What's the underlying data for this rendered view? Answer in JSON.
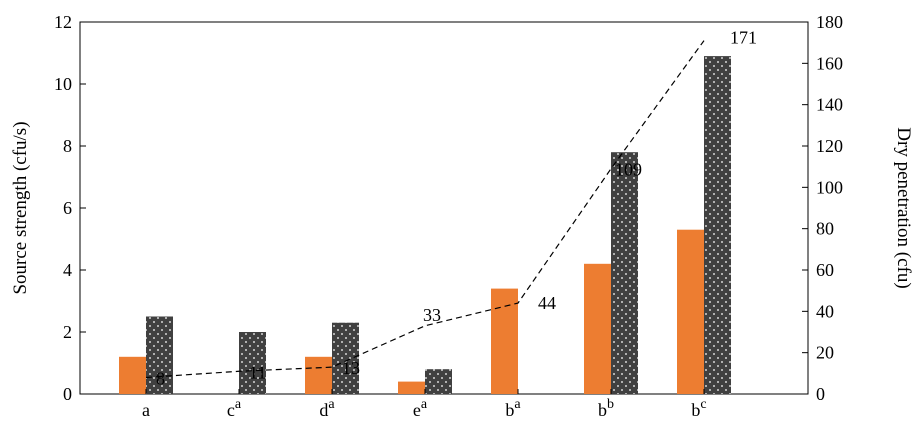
{
  "chart_data": {
    "type": "bar",
    "categories": [
      {
        "base": "a",
        "sup": ""
      },
      {
        "base": "c",
        "sup": "a"
      },
      {
        "base": "d",
        "sup": "a"
      },
      {
        "base": "e",
        "sup": "a"
      },
      {
        "base": "b",
        "sup": "a"
      },
      {
        "base": "b",
        "sup": "b"
      },
      {
        "base": "b",
        "sup": "c"
      }
    ],
    "series": [
      {
        "values": [
          1.2,
          0,
          1.2,
          0.4,
          3.4,
          4.2,
          5.3
        ],
        "color": "#ed7d31",
        "axis": "left",
        "kind": "bar"
      },
      {
        "values": [
          2.5,
          2.0,
          2.3,
          0.8,
          0,
          7.8,
          10.9
        ],
        "color": "#404040",
        "pattern": "white-dots",
        "axis": "left",
        "kind": "bar"
      },
      {
        "values": [
          8,
          11,
          13,
          33,
          44,
          109,
          171
        ],
        "color": "#000000",
        "style": "dashed",
        "axis": "right",
        "kind": "line"
      }
    ],
    "ylabel": "Source strength (cfu/s)",
    "y2label": "Dry penetration (cfu)",
    "ylim": [
      0,
      12
    ],
    "yticks": [
      "0",
      "2",
      "4",
      "6",
      "8",
      "10",
      "12"
    ],
    "y2lim": [
      0,
      180
    ],
    "y2ticks": [
      "0",
      "20",
      "40",
      "60",
      "80",
      "100",
      "120",
      "140",
      "160",
      "180"
    ],
    "line_labels": [
      "8",
      "11",
      "13",
      "33",
      "44",
      "109",
      "171"
    ]
  }
}
